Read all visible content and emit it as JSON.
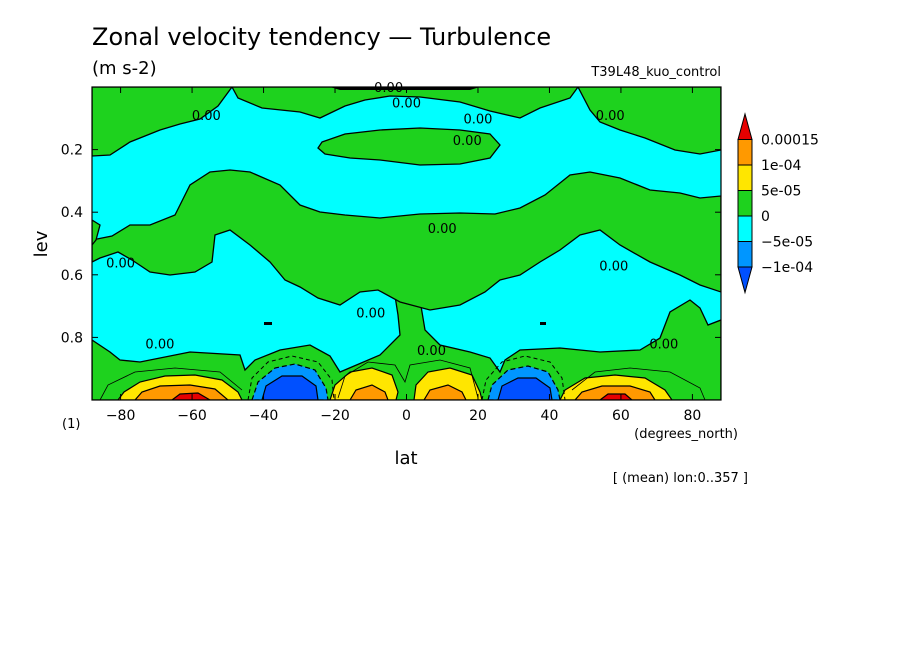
{
  "chart_data": {
    "type": "contour",
    "title": "Zonal velocity tendency — Turbulence",
    "units": "(m s-2)",
    "experiment": "T39L48_kuo_control",
    "xlabel": "lat",
    "xunits": "(degrees_north)",
    "ylabel": "lev",
    "yunits": "(1)",
    "footnote": "[ (mean) lon:0..357 ]",
    "xlim": [
      -88,
      88
    ],
    "ylim": [
      1.0,
      0.0
    ],
    "xticks": [
      -80,
      -60,
      -40,
      -20,
      0,
      20,
      40,
      60,
      80
    ],
    "xtick_labels": [
      "−80",
      "−60",
      "−40",
      "−20",
      "0",
      "20",
      "40",
      "60",
      "80"
    ],
    "yticks": [
      0.2,
      0.4,
      0.6,
      0.8
    ],
    "ytick_labels": [
      "0.2",
      "0.4",
      "0.6",
      "0.8"
    ],
    "levels": [
      -0.0001,
      -5e-05,
      0,
      5e-05,
      0.0001,
      0.00015
    ],
    "colorbar": [
      {
        "label": "",
        "color": "#e60000"
      },
      {
        "label": "0.00015",
        "color": "#ff9900"
      },
      {
        "label": "1e-04",
        "color": "#ffe600"
      },
      {
        "label": "5e-05",
        "color": "#1ed21e"
      },
      {
        "label": "0",
        "color": "#00ffff"
      },
      {
        "label": "−5e-05",
        "color": "#0096ff"
      },
      {
        "label": "−1e-04",
        "color": "#0050ff"
      }
    ],
    "contour_label": "0.00",
    "contour_label_positions": [
      {
        "lat": -56,
        "lev": 0.09
      },
      {
        "lat": -80,
        "lev": 0.56
      },
      {
        "lat": -69,
        "lev": 0.82
      },
      {
        "lat": -10,
        "lev": 0.72
      },
      {
        "lat": -5,
        "lev": 0.0
      },
      {
        "lat": 0,
        "lev": 0.05
      },
      {
        "lat": 20,
        "lev": 0.1
      },
      {
        "lat": 17,
        "lev": 0.17
      },
      {
        "lat": 10,
        "lev": 0.45
      },
      {
        "lat": 57,
        "lev": 0.09
      },
      {
        "lat": 58,
        "lev": 0.57
      },
      {
        "lat": 7,
        "lev": 0.84
      },
      {
        "lat": 72,
        "lev": 0.82
      }
    ]
  }
}
